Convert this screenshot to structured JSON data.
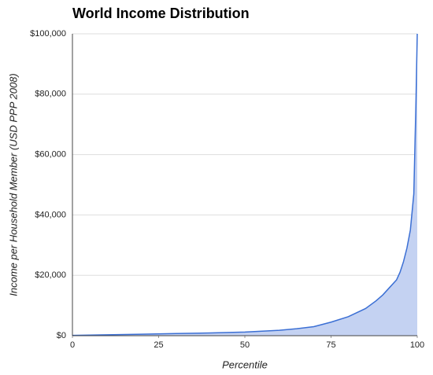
{
  "chart_data": {
    "type": "area",
    "title": "World Income Distribution",
    "x_label": "Percentile",
    "y_label": "Income per Household Member (USD PPP 2008)",
    "x": [
      0,
      10,
      20,
      30,
      40,
      50,
      60,
      65,
      70,
      75,
      80,
      85,
      88,
      90,
      92,
      94,
      95,
      96,
      97,
      98,
      99,
      99.6,
      100
    ],
    "series": [
      {
        "name": "Income",
        "color": "#3b6fd4",
        "fill": "#c4d2f2",
        "values": [
          100,
          300,
          500,
          700,
          900,
          1200,
          1800,
          2300,
          3000,
          4500,
          6300,
          9000,
          11500,
          13500,
          16000,
          18500,
          21000,
          24500,
          29000,
          35000,
          47000,
          76000,
          100000
        ]
      }
    ],
    "xlim": [
      0,
      100
    ],
    "xticks": [
      0,
      25,
      50,
      75,
      100
    ],
    "ylim": [
      0,
      100000
    ],
    "yticks": [
      {
        "value": 0,
        "label": "$0"
      },
      {
        "value": 20000,
        "label": "$20,000"
      },
      {
        "value": 40000,
        "label": "$40,000"
      },
      {
        "value": 60000,
        "label": "$60,000"
      },
      {
        "value": 80000,
        "label": "$80,000"
      },
      {
        "value": 100000,
        "label": "$100,000"
      }
    ],
    "grid": true
  }
}
